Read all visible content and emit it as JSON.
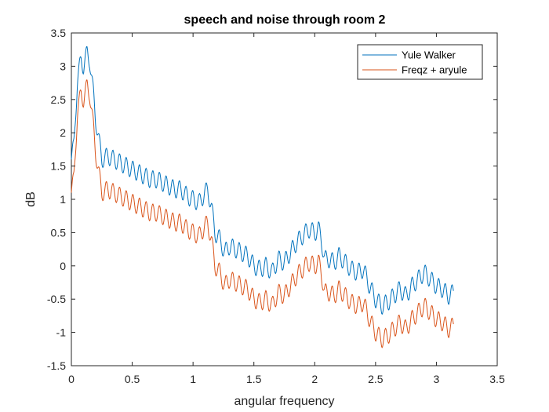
{
  "chart_data": {
    "type": "line",
    "title": "speech and noise through room 2",
    "xlabel": "angular frequency",
    "ylabel": "dB",
    "xlim": [
      0,
      3.5
    ],
    "ylim": [
      -1.5,
      3.5
    ],
    "xticks": [
      0,
      0.5,
      1,
      1.5,
      2,
      2.5,
      3,
      3.5
    ],
    "xtick_labels": [
      "0",
      "0.5",
      "1",
      "1.5",
      "2",
      "2.5",
      "3",
      "3.5"
    ],
    "yticks": [
      -1.5,
      -1,
      -0.5,
      0,
      0.5,
      1,
      1.5,
      2,
      2.5,
      3,
      3.5
    ],
    "ytick_labels": [
      "-1.5",
      "-1",
      "-0.5",
      "0",
      "0.5",
      "1",
      "1.5",
      "2",
      "2.5",
      "3",
      "3.5"
    ],
    "grid": false,
    "legend_position": "top-right",
    "series": [
      {
        "name": "Yule Walker",
        "color": "#0072BD",
        "x": [
          0,
          0.02,
          0.05,
          0.08,
          0.1,
          0.13,
          0.15,
          0.18,
          0.2,
          0.25,
          0.3,
          0.35,
          0.4,
          0.45,
          0.5,
          0.55,
          0.6,
          0.65,
          0.7,
          0.75,
          0.8,
          0.85,
          0.9,
          0.95,
          1.0,
          1.05,
          1.1,
          1.12,
          1.15,
          1.18,
          1.22,
          1.26,
          1.3,
          1.35,
          1.4,
          1.45,
          1.5,
          1.55,
          1.6,
          1.65,
          1.7,
          1.75,
          1.8,
          1.85,
          1.9,
          1.95,
          2.0,
          2.03,
          2.05,
          2.08,
          2.12,
          2.16,
          2.2,
          2.25,
          2.3,
          2.35,
          2.4,
          2.45,
          2.5,
          2.55,
          2.6,
          2.65,
          2.7,
          2.75,
          2.8,
          2.85,
          2.9,
          2.95,
          3.0,
          3.05,
          3.1,
          3.14
        ],
        "y": [
          1.6,
          1.8,
          2.8,
          3.1,
          3.0,
          3.2,
          3.1,
          2.6,
          2.2,
          1.6,
          1.65,
          1.6,
          1.55,
          1.5,
          1.45,
          1.4,
          1.35,
          1.3,
          1.3,
          1.25,
          1.2,
          1.15,
          1.15,
          1.05,
          1.0,
          0.95,
          1.1,
          1.15,
          0.9,
          0.5,
          0.4,
          0.2,
          0.3,
          0.25,
          0.2,
          0.15,
          0.0,
          -0.05,
          0.0,
          -0.1,
          0.1,
          0.05,
          0.2,
          0.35,
          0.45,
          0.55,
          0.5,
          0.55,
          0.45,
          0.1,
          0.1,
          0.05,
          0.15,
          0.05,
          -0.05,
          -0.1,
          -0.05,
          -0.3,
          -0.5,
          -0.6,
          -0.55,
          -0.45,
          -0.35,
          -0.45,
          -0.3,
          -0.2,
          -0.1,
          -0.2,
          -0.3,
          -0.35,
          -0.45,
          -0.4
        ]
      },
      {
        "name": "Freqz + aryule",
        "color": "#D95319",
        "x": [
          0,
          0.02,
          0.05,
          0.08,
          0.1,
          0.13,
          0.15,
          0.18,
          0.2,
          0.25,
          0.3,
          0.35,
          0.4,
          0.45,
          0.5,
          0.55,
          0.6,
          0.65,
          0.7,
          0.75,
          0.8,
          0.85,
          0.9,
          0.95,
          1.0,
          1.05,
          1.1,
          1.12,
          1.15,
          1.18,
          1.22,
          1.26,
          1.3,
          1.35,
          1.4,
          1.45,
          1.5,
          1.55,
          1.6,
          1.65,
          1.7,
          1.75,
          1.8,
          1.85,
          1.9,
          1.95,
          2.0,
          2.03,
          2.05,
          2.08,
          2.12,
          2.16,
          2.2,
          2.25,
          2.3,
          2.35,
          2.4,
          2.45,
          2.5,
          2.55,
          2.6,
          2.65,
          2.7,
          2.75,
          2.8,
          2.85,
          2.9,
          2.95,
          3.0,
          3.05,
          3.1,
          3.14
        ],
        "y": [
          1.1,
          1.3,
          2.3,
          2.6,
          2.5,
          2.7,
          2.6,
          2.1,
          1.7,
          1.1,
          1.15,
          1.1,
          1.05,
          1.0,
          0.95,
          0.9,
          0.85,
          0.8,
          0.8,
          0.75,
          0.7,
          0.65,
          0.65,
          0.55,
          0.5,
          0.45,
          0.6,
          0.65,
          0.4,
          0.0,
          -0.1,
          -0.3,
          -0.2,
          -0.25,
          -0.3,
          -0.35,
          -0.5,
          -0.55,
          -0.5,
          -0.6,
          -0.4,
          -0.45,
          -0.3,
          -0.15,
          -0.05,
          0.05,
          0.0,
          0.05,
          -0.05,
          -0.4,
          -0.4,
          -0.45,
          -0.35,
          -0.45,
          -0.55,
          -0.6,
          -0.55,
          -0.8,
          -1.0,
          -1.1,
          -1.05,
          -0.95,
          -0.85,
          -0.95,
          -0.8,
          -0.7,
          -0.6,
          -0.7,
          -0.8,
          -0.85,
          -0.95,
          -0.9
        ]
      }
    ]
  }
}
